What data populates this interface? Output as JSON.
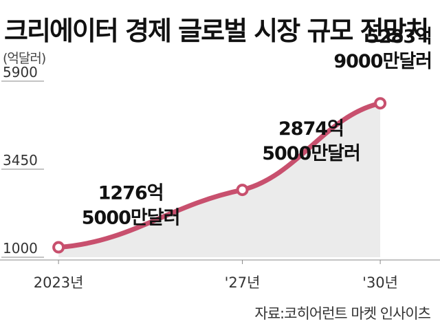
{
  "title": "크리에이터 경제 글로벌 시장 규모 전망치",
  "unit_label": "(억달러)",
  "source": "자료:코히어런트 마켓 인사이츠",
  "colors": {
    "line": "#c8506e",
    "area": "#ebebeb",
    "axis": "#888888"
  },
  "chart_data": {
    "type": "line",
    "title": "크리에이터 경제 글로벌 시장 규모 전망치",
    "ylabel": "(억달러)",
    "xlabel": "",
    "x": [
      "2023년",
      "'27년",
      "'30년"
    ],
    "x_years": [
      2023,
      2027,
      2030
    ],
    "y": [
      1276.5,
      2874.5,
      5283.9
    ],
    "ylim": [
      1000,
      5900
    ],
    "yticks": [
      {
        "value": 1000,
        "label": "1000"
      },
      {
        "value": 3450,
        "label": "3450"
      },
      {
        "value": 5900,
        "label": "5900"
      }
    ],
    "data_labels": [
      {
        "line1": "1276억",
        "line2": "5000만달러"
      },
      {
        "line1": "2874억",
        "line2": "5000만달러"
      },
      {
        "line1": "5283억",
        "line2": "9000만달러"
      }
    ],
    "grid": false,
    "area_fill": true
  }
}
